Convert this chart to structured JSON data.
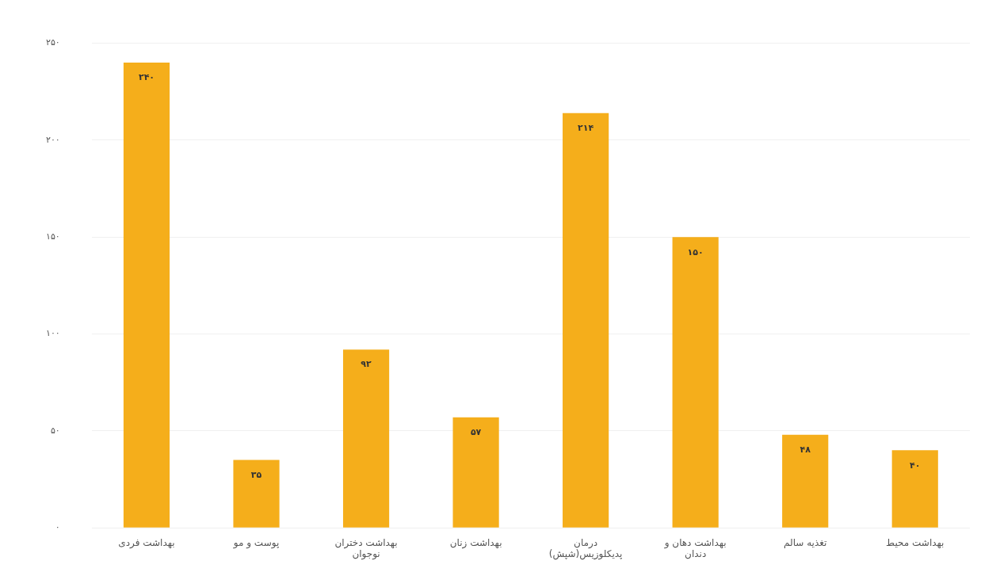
{
  "chart_data": {
    "type": "bar",
    "categories": [
      "بهداشت فردی",
      "پوست و مو",
      "بهداشت دختران نوجوان",
      "بهداشت زنان",
      "درمان پدیکلوزیس(شپش)",
      "بهداشت دهان و دندان",
      "تغذیه سالم",
      "بهداشت محیط"
    ],
    "values": [
      240,
      35,
      92,
      57,
      214,
      150,
      48,
      40
    ],
    "value_labels": [
      "۲۴۰",
      "۳۵",
      "۹۲",
      "۵۷",
      "۲۱۴",
      "۱۵۰",
      "۴۸",
      "۴۰"
    ],
    "color": "#f5ae1b",
    "ylim": [
      0,
      250
    ],
    "yticks": [
      {
        "value": 0,
        "label": "۰"
      },
      {
        "value": 50,
        "label": "۵۰"
      },
      {
        "value": 100,
        "label": "۱۰۰"
      },
      {
        "value": 150,
        "label": "۱۵۰"
      },
      {
        "value": 200,
        "label": "۲۰۰"
      },
      {
        "value": 250,
        "label": "۲۵۰"
      }
    ],
    "grid": "y",
    "legend": false
  }
}
